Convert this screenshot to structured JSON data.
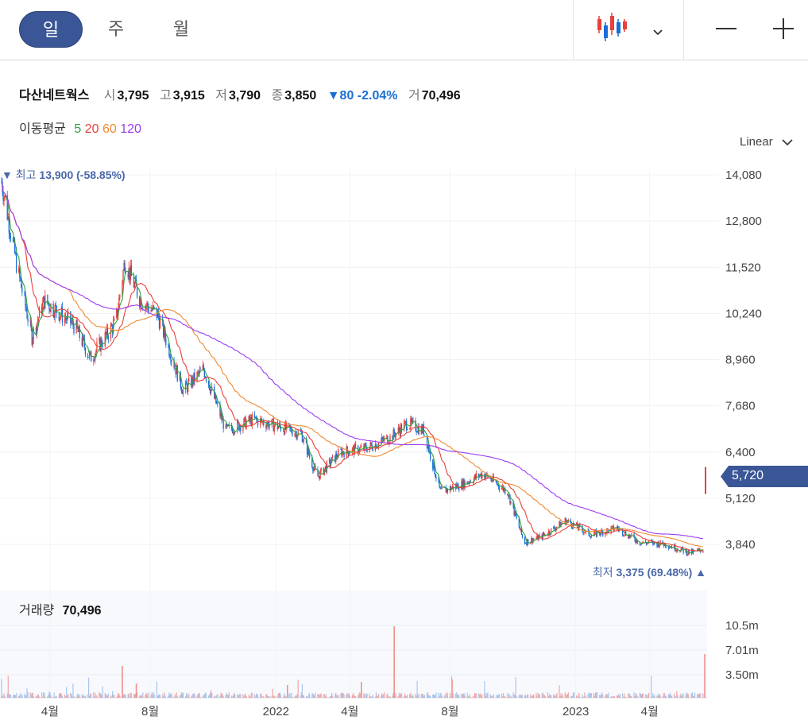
{
  "toolbar": {
    "tabs": [
      {
        "label": "일",
        "active": true
      },
      {
        "label": "주",
        "active": false
      },
      {
        "label": "월",
        "active": false
      }
    ],
    "chart_type_icon": "candlestick-icon",
    "zoom_out_icon": "minus-icon",
    "zoom_in_icon": "plus-icon"
  },
  "quote": {
    "name": "다산네트웍스",
    "open_label": "시",
    "open": "3,795",
    "high_label": "고",
    "high": "3,915",
    "low_label": "저",
    "low": "3,790",
    "close_label": "종",
    "close": "3,850",
    "change": "▼80 -2.04%",
    "volume_label": "거",
    "volume": "70,496"
  },
  "moving_average": {
    "label": "이동평균",
    "periods": [
      {
        "label": "5",
        "color": "#2ea043"
      },
      {
        "label": "20",
        "color": "#e8403a"
      },
      {
        "label": "60",
        "color": "#f08a30"
      },
      {
        "label": "120",
        "color": "#9b3bf0"
      }
    ]
  },
  "scale": {
    "label": "Linear"
  },
  "extremes": {
    "max_prefix": "▼ 최고",
    "max_value": "13,900 (-58.85%)",
    "min_prefix": "최저",
    "min_value": "3,375 (69.48%)",
    "min_suffix": "▲"
  },
  "current_price": "5,720",
  "volume_panel": {
    "label": "거래량",
    "value": "70,496"
  },
  "colors": {
    "accent": "#3a5696",
    "up": "#e8403a",
    "down": "#1a6fd6",
    "ma5": "#2ea043",
    "ma20": "#e8403a",
    "ma60": "#f08a30",
    "ma120": "#9b3bf0"
  },
  "chart_data": {
    "type": "candlestick",
    "y_ticks": [
      "14,080",
      "12,800",
      "11,520",
      "10,240",
      "8,960",
      "7,680",
      "6,400",
      "5,120",
      "3,840"
    ],
    "y_values": [
      14080,
      12800,
      11520,
      10240,
      8960,
      7680,
      6400,
      5120,
      3840
    ],
    "ylim": [
      3200,
      14400
    ],
    "x_ticks": [
      "4월",
      "8월",
      "2022",
      "4월",
      "8월",
      "2023",
      "4월"
    ],
    "x_tick_dates": [
      "2021-04",
      "2021-08",
      "2022-01",
      "2022-04",
      "2022-08",
      "2023-01",
      "2023-04"
    ],
    "x_range": [
      "2021-02",
      "2023-06"
    ],
    "price_path_approx": [
      {
        "date": "2021-02-01",
        "close": 13900
      },
      {
        "date": "2021-02-20",
        "close": 11500
      },
      {
        "date": "2021-03-10",
        "close": 9600
      },
      {
        "date": "2021-03-25",
        "close": 10600
      },
      {
        "date": "2021-05-01",
        "close": 9900
      },
      {
        "date": "2021-05-20",
        "close": 9000
      },
      {
        "date": "2021-06-20",
        "close": 10000
      },
      {
        "date": "2021-07-01",
        "close": 11700
      },
      {
        "date": "2021-07-20",
        "close": 10600
      },
      {
        "date": "2021-08-10",
        "close": 10200
      },
      {
        "date": "2021-09-10",
        "close": 8100
      },
      {
        "date": "2021-10-05",
        "close": 8700
      },
      {
        "date": "2021-11-01",
        "close": 7000
      },
      {
        "date": "2021-12-05",
        "close": 7300
      },
      {
        "date": "2022-01-05",
        "close": 7100
      },
      {
        "date": "2022-02-01",
        "close": 6900
      },
      {
        "date": "2022-02-20",
        "close": 5700
      },
      {
        "date": "2022-03-20",
        "close": 6400
      },
      {
        "date": "2022-04-20",
        "close": 6500
      },
      {
        "date": "2022-05-20",
        "close": 6800
      },
      {
        "date": "2022-06-10",
        "close": 7200
      },
      {
        "date": "2022-06-30",
        "close": 7000
      },
      {
        "date": "2022-07-20",
        "close": 5300
      },
      {
        "date": "2022-08-15",
        "close": 5500
      },
      {
        "date": "2022-09-10",
        "close": 5800
      },
      {
        "date": "2022-10-10",
        "close": 5300
      },
      {
        "date": "2022-10-30",
        "close": 3900
      },
      {
        "date": "2022-11-20",
        "close": 4050
      },
      {
        "date": "2022-12-20",
        "close": 4500
      },
      {
        "date": "2023-01-20",
        "close": 4100
      },
      {
        "date": "2023-02-20",
        "close": 4300
      },
      {
        "date": "2023-03-20",
        "close": 3900
      },
      {
        "date": "2023-04-20",
        "close": 3850
      },
      {
        "date": "2023-05-20",
        "close": 3600
      },
      {
        "date": "2023-06-05",
        "close": 3700
      }
    ],
    "volume_ticks": [
      "10.5m",
      "7.01m",
      "3.50m"
    ],
    "volume_tick_values": [
      10500000,
      7010000,
      3500000
    ]
  }
}
